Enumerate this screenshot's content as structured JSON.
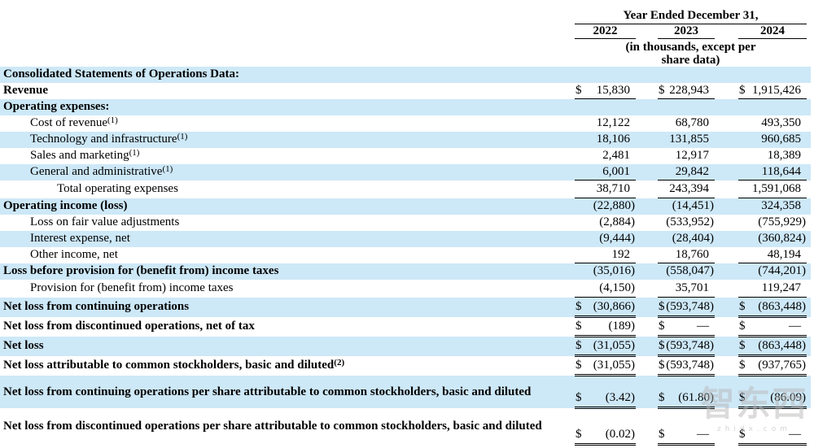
{
  "header": {
    "year_ended_label": "Year Ended December 31,",
    "years": [
      "2022",
      "2023",
      "2024"
    ],
    "units_note": "(in thousands, except per share data)"
  },
  "colors": {
    "row_highlight": "#cde8f7",
    "rule": "#000000"
  },
  "watermark": {
    "logo_text": "智东西",
    "site_text": "zhidx.com"
  },
  "table": {
    "rows": [
      {
        "label": "Consolidated Statements of Operations Data:",
        "bold": true,
        "indent": 0,
        "shaded": true,
        "dollar": false,
        "underline": "none",
        "values": [
          "",
          "",
          ""
        ]
      },
      {
        "label": "Revenue",
        "bold": true,
        "indent": 0,
        "shaded": false,
        "dollar": true,
        "underline": "single",
        "values": [
          "15,830",
          "228,943",
          "1,915,426"
        ]
      },
      {
        "label": "Operating expenses:",
        "bold": true,
        "indent": 0,
        "shaded": true,
        "dollar": false,
        "underline": "none",
        "values": [
          "",
          "",
          ""
        ]
      },
      {
        "label": "Cost of revenue",
        "sup": "(1)",
        "indent": 1,
        "shaded": false,
        "dollar": false,
        "underline": "none",
        "values": [
          "12,122",
          "68,780",
          "493,350"
        ]
      },
      {
        "label": "Technology and infrastructure",
        "sup": "(1)",
        "indent": 1,
        "shaded": true,
        "dollar": false,
        "underline": "none",
        "values": [
          "18,106",
          "131,855",
          "960,685"
        ]
      },
      {
        "label": "Sales and marketing",
        "sup": "(1)",
        "indent": 1,
        "shaded": false,
        "dollar": false,
        "underline": "none",
        "values": [
          "2,481",
          "12,917",
          "18,389"
        ]
      },
      {
        "label": "General and administrative",
        "sup": "(1)",
        "indent": 1,
        "shaded": true,
        "dollar": false,
        "underline": "single",
        "values": [
          "6,001",
          "29,842",
          "118,644"
        ]
      },
      {
        "label": "Total operating expenses",
        "indent": 2,
        "shaded": false,
        "dollar": false,
        "underline": "single",
        "values": [
          "38,710",
          "243,394",
          "1,591,068"
        ],
        "h": 22
      },
      {
        "label": "Operating income (loss)",
        "bold": true,
        "indent": 0,
        "shaded": true,
        "dollar": false,
        "underline": "none",
        "values": [
          "(22,880)",
          "(14,451)",
          "324,358"
        ]
      },
      {
        "label": "Loss on fair value adjustments",
        "indent": 1,
        "shaded": false,
        "dollar": false,
        "underline": "none",
        "values": [
          "(2,884)",
          "(533,952)",
          "(755,929)"
        ]
      },
      {
        "label": "Interest expense, net",
        "indent": 1,
        "shaded": true,
        "dollar": false,
        "underline": "none",
        "values": [
          "(9,444)",
          "(28,404)",
          "(360,824)"
        ]
      },
      {
        "label": "Other income, net",
        "indent": 1,
        "shaded": false,
        "dollar": false,
        "underline": "single",
        "values": [
          "192",
          "18,760",
          "48,194"
        ]
      },
      {
        "label": "Loss before provision for (benefit from) income taxes",
        "bold": true,
        "indent": 0,
        "shaded": true,
        "dollar": false,
        "underline": "none",
        "values": [
          "(35,016)",
          "(558,047)",
          "(744,201)"
        ]
      },
      {
        "label": "Provision for (benefit from) income taxes",
        "indent": 1,
        "shaded": false,
        "dollar": false,
        "underline": "single",
        "values": [
          "(4,150)",
          "35,701",
          "119,247"
        ],
        "h": 22
      },
      {
        "label": "Net loss from continuing operations",
        "bold": true,
        "indent": 0,
        "shaded": true,
        "dollar": true,
        "underline": "double",
        "values": [
          "(30,866)",
          "(593,748)",
          "(863,448)"
        ],
        "h": 24
      },
      {
        "label": "Net loss from discontinued operations, net of tax",
        "bold": true,
        "indent": 0,
        "shaded": false,
        "dollar": true,
        "underline": "double",
        "values": [
          "(189)",
          "—",
          "—"
        ],
        "h": 24
      },
      {
        "label": "Net loss",
        "bold": true,
        "indent": 0,
        "shaded": true,
        "dollar": true,
        "underline": "double",
        "values": [
          "(31,055)",
          "(593,748)",
          "(863,448)"
        ],
        "h": 24
      },
      {
        "label": "Net loss attributable to common stockholders, basic and diluted",
        "sup": "(2)",
        "bold": true,
        "indent": 0,
        "shaded": false,
        "dollar": true,
        "underline": "double",
        "values": [
          "(31,055)",
          "(593,748)",
          "(937,765)"
        ],
        "h": 24
      },
      {
        "label": "Net loss from continuing operations per share attributable to common stockholders, basic and diluted",
        "bold": true,
        "indent": 0,
        "shaded": true,
        "dollar": true,
        "underline": "double",
        "values": [
          "(3.42)",
          "(61.80)",
          "(86.09)"
        ],
        "h": 40,
        "hanging": true
      },
      {
        "label": "Net loss from discontinued operations per share attributable to common stockholders, basic and diluted",
        "bold": true,
        "indent": 0,
        "shaded": false,
        "dollar": true,
        "underline": "double",
        "values": [
          "(0.02)",
          "—",
          "—"
        ],
        "h": 45,
        "hanging": true
      }
    ]
  }
}
